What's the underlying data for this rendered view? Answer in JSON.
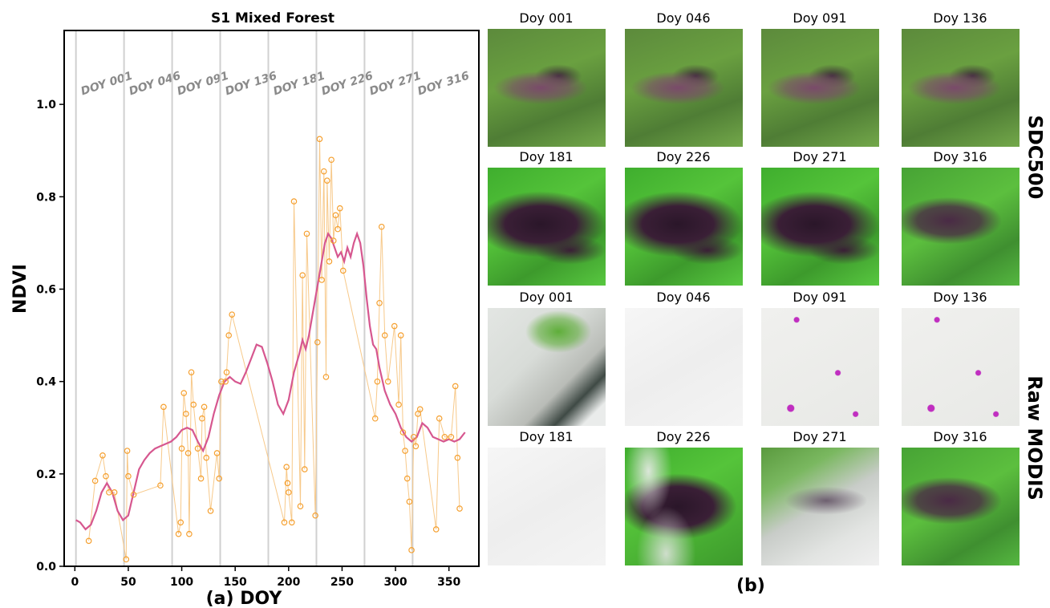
{
  "chart_data": {
    "type": "line",
    "title": "S1 Mixed Forest",
    "xlabel": "(a) DOY",
    "ylabel": "NDVI",
    "xlim": [
      -10,
      378
    ],
    "ylim": [
      0.0,
      1.16
    ],
    "xticks": [
      0,
      50,
      100,
      150,
      200,
      250,
      300,
      350
    ],
    "yticks": [
      0.0,
      0.2,
      0.4,
      0.6,
      0.8,
      1.0
    ],
    "ytick_labels": [
      "0.0",
      "0.2",
      "0.4",
      "0.6",
      "0.8",
      "1.0"
    ],
    "grid": false,
    "vlines": [
      {
        "x": 1,
        "label": "DOY 001"
      },
      {
        "x": 46,
        "label": "DOY 046"
      },
      {
        "x": 91,
        "label": "DOY 091"
      },
      {
        "x": 136,
        "label": "DOY 136"
      },
      {
        "x": 181,
        "label": "DOY 181"
      },
      {
        "x": 226,
        "label": "DOY 226"
      },
      {
        "x": 271,
        "label": "DOY 271"
      },
      {
        "x": 316,
        "label": "DOY 316"
      }
    ],
    "series": [
      {
        "kind": "line",
        "color": "#d6578f",
        "x": [
          1,
          5,
          10,
          15,
          20,
          25,
          30,
          35,
          40,
          45,
          50,
          55,
          60,
          65,
          70,
          75,
          80,
          85,
          90,
          95,
          100,
          105,
          110,
          115,
          120,
          125,
          130,
          135,
          140,
          145,
          150,
          155,
          160,
          165,
          170,
          175,
          180,
          185,
          190,
          195,
          200,
          205,
          210,
          213,
          216,
          219,
          222,
          225,
          228,
          231,
          234,
          237,
          240,
          243,
          246,
          249,
          252,
          255,
          258,
          261,
          264,
          267,
          270,
          273,
          276,
          279,
          282,
          285,
          290,
          295,
          300,
          305,
          310,
          315,
          320,
          325,
          330,
          335,
          340,
          345,
          350,
          355,
          360,
          365
        ],
        "y": [
          0.1,
          0.095,
          0.08,
          0.09,
          0.12,
          0.16,
          0.18,
          0.16,
          0.12,
          0.1,
          0.11,
          0.16,
          0.21,
          0.23,
          0.245,
          0.255,
          0.26,
          0.265,
          0.27,
          0.28,
          0.295,
          0.3,
          0.295,
          0.27,
          0.25,
          0.28,
          0.33,
          0.37,
          0.4,
          0.41,
          0.4,
          0.395,
          0.42,
          0.45,
          0.48,
          0.475,
          0.44,
          0.4,
          0.35,
          0.33,
          0.36,
          0.42,
          0.46,
          0.49,
          0.47,
          0.5,
          0.54,
          0.58,
          0.62,
          0.66,
          0.7,
          0.72,
          0.71,
          0.69,
          0.67,
          0.68,
          0.66,
          0.69,
          0.67,
          0.7,
          0.72,
          0.7,
          0.65,
          0.58,
          0.52,
          0.48,
          0.47,
          0.43,
          0.38,
          0.35,
          0.33,
          0.3,
          0.28,
          0.27,
          0.28,
          0.31,
          0.3,
          0.28,
          0.275,
          0.27,
          0.275,
          0.27,
          0.275,
          0.29
        ]
      },
      {
        "kind": "scatter-line",
        "color": "#f5a030",
        "x": [
          13,
          19,
          26,
          29,
          32,
          37,
          48,
          49,
          50,
          55,
          80,
          83,
          97,
          99,
          100,
          102,
          104,
          106,
          107,
          109,
          111,
          115,
          118,
          119,
          121,
          123,
          127,
          133,
          135,
          137,
          141,
          142,
          144,
          147,
          196,
          198,
          199,
          200,
          203,
          205,
          211,
          213,
          215,
          217,
          225,
          227,
          229,
          231,
          233,
          235,
          236,
          238,
          240,
          242,
          244,
          246,
          248,
          251,
          281,
          283,
          285,
          287,
          290,
          293,
          299,
          303,
          305,
          307,
          309,
          311,
          313,
          315,
          317,
          319,
          321,
          323,
          338,
          341,
          346,
          352,
          356,
          358,
          360
        ],
        "y": [
          0.055,
          0.185,
          0.24,
          0.195,
          0.16,
          0.16,
          0.015,
          0.25,
          0.195,
          0.155,
          0.175,
          0.345,
          0.07,
          0.095,
          0.255,
          0.375,
          0.33,
          0.245,
          0.07,
          0.42,
          0.35,
          0.255,
          0.19,
          0.32,
          0.345,
          0.235,
          0.12,
          0.245,
          0.19,
          0.4,
          0.4,
          0.42,
          0.5,
          0.545,
          0.095,
          0.215,
          0.18,
          0.16,
          0.095,
          0.79,
          0.13,
          0.63,
          0.21,
          0.72,
          0.11,
          0.485,
          0.925,
          0.62,
          0.855,
          0.41,
          0.835,
          0.66,
          0.88,
          0.705,
          0.76,
          0.73,
          0.775,
          0.64,
          0.32,
          0.4,
          0.57,
          0.735,
          0.5,
          0.4,
          0.52,
          0.35,
          0.5,
          0.29,
          0.25,
          0.19,
          0.14,
          0.035,
          0.28,
          0.26,
          0.33,
          0.34,
          0.08,
          0.32,
          0.28,
          0.28,
          0.39,
          0.235,
          0.125
        ]
      }
    ]
  },
  "panel_b": {
    "label": "(b)",
    "rows": [
      {
        "group": "SDC500",
        "tiles": [
          {
            "label": "Doy 001",
            "kind": "veg"
          },
          {
            "label": "Doy 046",
            "kind": "veg"
          },
          {
            "label": "Doy 091",
            "kind": "veg"
          },
          {
            "label": "Doy 136",
            "kind": "veg"
          }
        ]
      },
      {
        "group": "SDC500",
        "tiles": [
          {
            "label": "Doy 181",
            "kind": "veg-dark"
          },
          {
            "label": "Doy 226",
            "kind": "veg-dark"
          },
          {
            "label": "Doy 271",
            "kind": "veg-dark"
          },
          {
            "label": "Doy 316",
            "kind": "veg-mid"
          }
        ]
      },
      {
        "group": "Raw MODIS",
        "tiles": [
          {
            "label": "Doy 001",
            "kind": "cloud-partial"
          },
          {
            "label": "Doy 046",
            "kind": "cloud-full"
          },
          {
            "label": "Doy 091",
            "kind": "cloud-speck"
          },
          {
            "label": "Doy 136",
            "kind": "cloud-speck"
          }
        ]
      },
      {
        "group": "Raw MODIS",
        "tiles": [
          {
            "label": "Doy 181",
            "kind": "cloud-full"
          },
          {
            "label": "Doy 226",
            "kind": "veg-dark-cloud"
          },
          {
            "label": "Doy 271",
            "kind": "cloud-haze"
          },
          {
            "label": "Doy 316",
            "kind": "veg-mid"
          }
        ]
      }
    ],
    "group_labels": [
      "SDC500",
      "Raw MODIS"
    ]
  }
}
